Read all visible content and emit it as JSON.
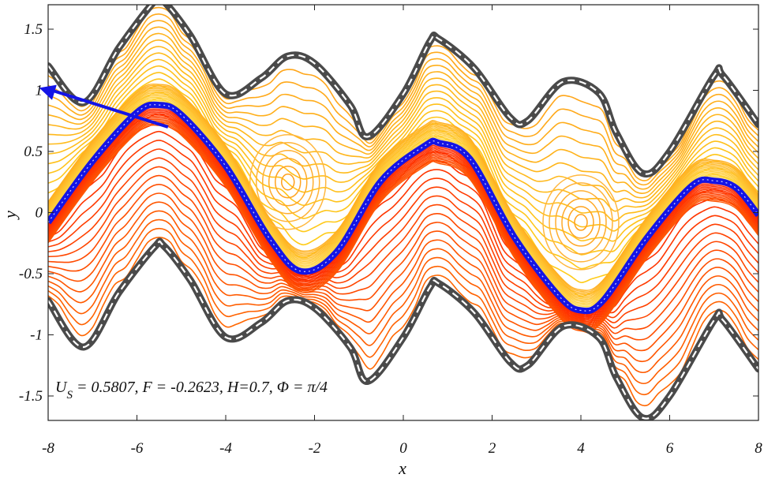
{
  "chart_data": {
    "type": "line",
    "subtype": "contour / streamline plot",
    "xlabel": "x",
    "ylabel": "y",
    "xlim": [
      -8,
      8
    ],
    "ylim": [
      -1.7,
      1.7
    ],
    "xticks": [
      "-8",
      "-6",
      "-4",
      "-2",
      "0",
      "2",
      "4",
      "6",
      "8"
    ],
    "yticks": [
      "1.5",
      "1",
      "0.5",
      "0",
      "-0.5",
      "-1",
      "-1.5"
    ],
    "annotation": {
      "us": "U",
      "us_sub": "S",
      "rest": " = 0.5807, F = -0.2623, H=0.7, Φ = π/4"
    },
    "series": [
      {
        "role": "upper wall",
        "x": [
          -8,
          -7.2,
          -6.4,
          -5.6,
          -5.4,
          -4.8,
          -4,
          -3.2,
          -2.6,
          -2,
          -1.2,
          -0.8,
          0,
          0.6,
          0.8,
          1.6,
          2.4,
          2.8,
          3.6,
          4.4,
          4.8,
          5.4,
          6,
          7,
          7.2,
          8
        ],
        "y": [
          1.2,
          0.9,
          1.35,
          1.73,
          1.73,
          1.45,
          0.97,
          1.1,
          1.28,
          1.22,
          0.88,
          0.62,
          0.97,
          1.4,
          1.42,
          1.18,
          0.78,
          0.75,
          1.07,
          0.98,
          0.65,
          0.32,
          0.5,
          1.12,
          1.12,
          0.72
        ]
      },
      {
        "role": "lower wall",
        "x": [
          -8,
          -7.2,
          -6.4,
          -5.6,
          -5.4,
          -4.8,
          -4,
          -3.2,
          -2.6,
          -2,
          -1.2,
          -0.8,
          0,
          0.6,
          0.8,
          1.6,
          2.4,
          2.8,
          3.6,
          4.4,
          4.8,
          5.4,
          6,
          7,
          7.2,
          8
        ],
        "y": [
          -0.72,
          -1.1,
          -0.65,
          -0.28,
          -0.27,
          -0.55,
          -1.02,
          -0.9,
          -0.72,
          -0.78,
          -1.1,
          -1.38,
          -1.02,
          -0.61,
          -0.58,
          -0.82,
          -1.22,
          -1.25,
          -0.93,
          -1.02,
          -1.35,
          -1.68,
          -1.5,
          -0.88,
          -0.88,
          -1.28
        ]
      },
      {
        "role": "dividing streamline",
        "x": [
          -8,
          -7,
          -6,
          -5.5,
          -5,
          -4,
          -3,
          -2.3,
          -1.5,
          -0.5,
          0.5,
          0.8,
          1.5,
          2.5,
          3.5,
          4,
          4.5,
          5.5,
          6.5,
          7,
          7.5,
          8
        ],
        "y": [
          -0.08,
          0.42,
          0.82,
          0.88,
          0.8,
          0.38,
          -0.22,
          -0.48,
          -0.32,
          0.26,
          0.55,
          0.57,
          0.44,
          -0.2,
          -0.68,
          -0.8,
          -0.72,
          -0.2,
          0.22,
          0.26,
          0.2,
          -0.02
        ]
      }
    ],
    "vortex_centers": [
      {
        "x": -2.6,
        "y": 0.25
      },
      {
        "x": 4.0,
        "y": -0.08
      }
    ],
    "arrow": {
      "from": [
        -5.3,
        0.7
      ],
      "to": [
        -8.2,
        1.02
      ]
    },
    "colors": {
      "wall": "#4a4a4a",
      "wall_dash": "#ffffff",
      "dividing": "#1414e6",
      "upper_region": "#ffa31a",
      "lower_region": "#ff6a00",
      "arrow": "#1414e6"
    }
  }
}
